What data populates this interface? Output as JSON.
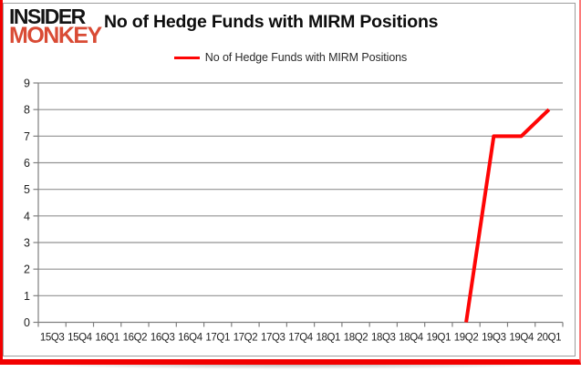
{
  "logo": {
    "line1": "INSIDER",
    "line2": "MONKEY"
  },
  "header": {
    "title": "No of Hedge Funds with MIRM Positions"
  },
  "legend": {
    "label": "No of Hedge Funds with MIRM Positions"
  },
  "colors": {
    "line": "#fe0505",
    "frame": "#f20000",
    "logo_black": "#141414",
    "logo_red": "#d94b35",
    "grid": "#929292",
    "axis": "#7f7f7f",
    "tick_text": "#1f1f1f"
  },
  "chart_data": {
    "type": "line",
    "title": "No of Hedge Funds with MIRM Positions",
    "categories": [
      "15Q3",
      "15Q4",
      "16Q1",
      "16Q2",
      "16Q3",
      "16Q4",
      "17Q1",
      "17Q2",
      "17Q3",
      "17Q4",
      "18Q1",
      "18Q2",
      "18Q3",
      "18Q4",
      "19Q1",
      "19Q2",
      "19Q3",
      "19Q4",
      "20Q1"
    ],
    "series": [
      {
        "name": "No of Hedge Funds with MIRM Positions",
        "color": "#fe0505",
        "values": [
          null,
          null,
          null,
          null,
          null,
          null,
          null,
          null,
          null,
          null,
          null,
          null,
          null,
          null,
          null,
          0,
          7,
          7,
          8
        ]
      }
    ],
    "ylim": [
      0,
      9
    ],
    "yticks": [
      0,
      1,
      2,
      3,
      4,
      5,
      6,
      7,
      8,
      9
    ],
    "grid": "horizontal",
    "legend_position": "top-center"
  }
}
